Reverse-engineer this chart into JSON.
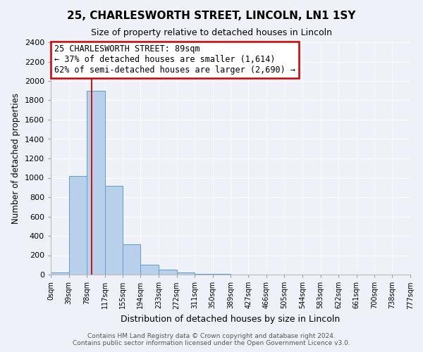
{
  "title": "25, CHARLESWORTH STREET, LINCOLN, LN1 1SY",
  "subtitle": "Size of property relative to detached houses in Lincoln",
  "xlabel": "Distribution of detached houses by size in Lincoln",
  "ylabel": "Number of detached properties",
  "bar_color": "#b8d0ea",
  "bar_edge_color": "#5a9fd4",
  "background_color": "#eef2f8",
  "grid_color": "#ffffff",
  "property_line_x": 89,
  "property_line_color": "#cc0000",
  "annotation_text": "25 CHARLESWORTH STREET: 89sqm\n← 37% of detached houses are smaller (1,614)\n62% of semi-detached houses are larger (2,690) →",
  "annotation_box_color": "#ffffff",
  "annotation_box_edge_color": "#cc0000",
  "bin_edges": [
    0,
    39,
    78,
    117,
    155,
    194,
    233,
    272,
    311,
    350,
    389,
    427,
    466,
    505,
    544,
    583,
    622,
    661,
    700,
    738,
    777
  ],
  "bin_counts": [
    20,
    1020,
    1900,
    920,
    310,
    100,
    50,
    25,
    5,
    5,
    0,
    0,
    0,
    0,
    0,
    0,
    0,
    0,
    0,
    0
  ],
  "ylim": [
    0,
    2400
  ],
  "yticks": [
    0,
    200,
    400,
    600,
    800,
    1000,
    1200,
    1400,
    1600,
    1800,
    2000,
    2200,
    2400
  ],
  "footer_text": "Contains HM Land Registry data © Crown copyright and database right 2024.\nContains public sector information licensed under the Open Government Licence v3.0.",
  "figsize": [
    6.0,
    5.0
  ],
  "dpi": 100
}
